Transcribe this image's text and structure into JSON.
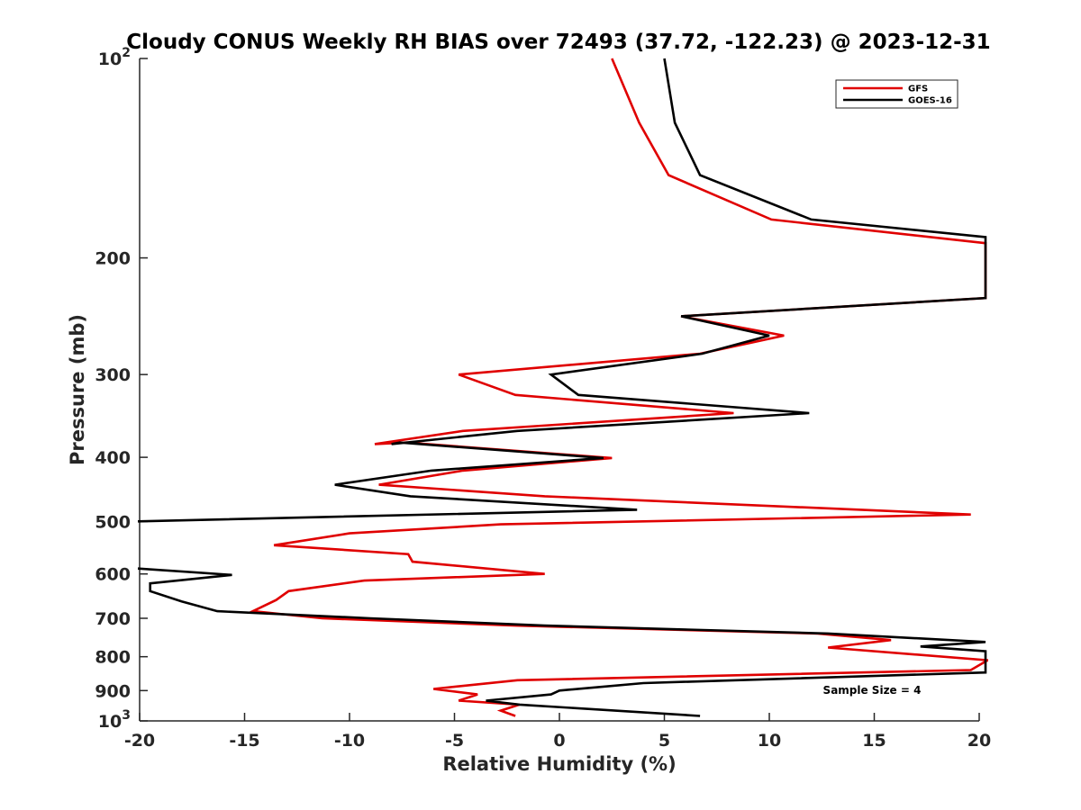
{
  "chart_data": {
    "type": "line",
    "title": "Cloudy CONUS Weekly RH BIAS over 72493 (37.72, -122.23) @ 2023-12-31",
    "xlabel": "Relative Humidity (%)",
    "ylabel": "Pressure (mb)",
    "xlim": [
      -20,
      20
    ],
    "ylim": [
      1000,
      100
    ],
    "y_scale": "log",
    "y_reversed": true,
    "grid": false,
    "legend_position": "top-right",
    "x_ticks": [
      -20,
      -15,
      -10,
      -5,
      0,
      5,
      10,
      15,
      20
    ],
    "x_tick_labels": [
      "-20",
      "-15",
      "-10",
      "-5",
      "0",
      "5",
      "10",
      "15",
      "20"
    ],
    "y_ticks": [
      100,
      200,
      300,
      400,
      500,
      600,
      700,
      800,
      900,
      1000
    ],
    "y_tick_labels": [
      {
        "base": "10",
        "exp": "2"
      },
      {
        "base": "200",
        "exp": ""
      },
      {
        "base": "300",
        "exp": ""
      },
      {
        "base": "400",
        "exp": ""
      },
      {
        "base": "500",
        "exp": ""
      },
      {
        "base": "600",
        "exp": ""
      },
      {
        "base": "700",
        "exp": ""
      },
      {
        "base": "800",
        "exp": ""
      },
      {
        "base": "900",
        "exp": ""
      },
      {
        "base": "10",
        "exp": "3"
      }
    ],
    "annotation": "Sample Size = 4",
    "series": [
      {
        "name": "GFS",
        "color": "#e00000",
        "points": [
          [
            2.5,
            100
          ],
          [
            3.8,
            125
          ],
          [
            5.2,
            150
          ],
          [
            10.1,
            175
          ],
          [
            20.3,
            190
          ],
          [
            20.3,
            230
          ],
          [
            5.8,
            245
          ],
          [
            10.7,
            262
          ],
          [
            6.7,
            279
          ],
          [
            -4.8,
            300
          ],
          [
            -2.1,
            322
          ],
          [
            8.3,
            343
          ],
          [
            -4.6,
            365
          ],
          [
            -8.8,
            382
          ],
          [
            -7.3,
            380
          ],
          [
            2.5,
            401
          ],
          [
            -4.6,
            419
          ],
          [
            -8.6,
            440
          ],
          [
            -0.7,
            458
          ],
          [
            19.6,
            488
          ],
          [
            -2.8,
            505
          ],
          [
            -10.0,
            521
          ],
          [
            -13.6,
            543
          ],
          [
            -7.2,
            560
          ],
          [
            -7.0,
            575
          ],
          [
            -0.7,
            600
          ],
          [
            -9.3,
            614
          ],
          [
            -12.9,
            637
          ],
          [
            -13.5,
            657
          ],
          [
            -14.6,
            683
          ],
          [
            -11.3,
            700
          ],
          [
            -2.1,
            718
          ],
          [
            12.3,
            738
          ],
          [
            15.8,
            755
          ],
          [
            12.8,
            775
          ],
          [
            20.4,
            810
          ],
          [
            19.6,
            838
          ],
          [
            -2.0,
            868
          ],
          [
            -6.0,
            895
          ],
          [
            -3.9,
            912
          ],
          [
            -4.8,
            932
          ],
          [
            -1.9,
            945
          ],
          [
            -2.8,
            965
          ],
          [
            -2.1,
            983
          ]
        ]
      },
      {
        "name": "GOES-16",
        "color": "#000000",
        "points": [
          [
            5.0,
            100
          ],
          [
            5.5,
            125
          ],
          [
            6.7,
            150
          ],
          [
            12.0,
            175
          ],
          [
            20.3,
            186
          ],
          [
            20.3,
            230
          ],
          [
            5.8,
            245
          ],
          [
            10.0,
            262
          ],
          [
            6.8,
            279
          ],
          [
            -0.4,
            300
          ],
          [
            0.9,
            322
          ],
          [
            11.9,
            343
          ],
          [
            -2.0,
            365
          ],
          [
            -8.0,
            382
          ],
          [
            -7.6,
            380
          ],
          [
            2.1,
            401
          ],
          [
            -6.1,
            419
          ],
          [
            -10.7,
            440
          ],
          [
            -7.1,
            458
          ],
          [
            3.7,
            480
          ],
          [
            -20.3,
            500
          ],
          [
            -20.3,
            588
          ],
          [
            -15.6,
            602
          ],
          [
            -19.5,
            620
          ],
          [
            -19.5,
            637
          ],
          [
            -18.0,
            660
          ],
          [
            -16.3,
            683
          ],
          [
            -9.0,
            700
          ],
          [
            -0.7,
            718
          ],
          [
            12.8,
            738
          ],
          [
            20.3,
            760
          ],
          [
            17.2,
            772
          ],
          [
            20.3,
            785
          ],
          [
            20.3,
            845
          ],
          [
            4.0,
            877
          ],
          [
            0.0,
            900
          ],
          [
            -0.4,
            912
          ],
          [
            -3.5,
            932
          ],
          [
            -1.9,
            945
          ],
          [
            6.7,
            983
          ]
        ]
      }
    ]
  }
}
